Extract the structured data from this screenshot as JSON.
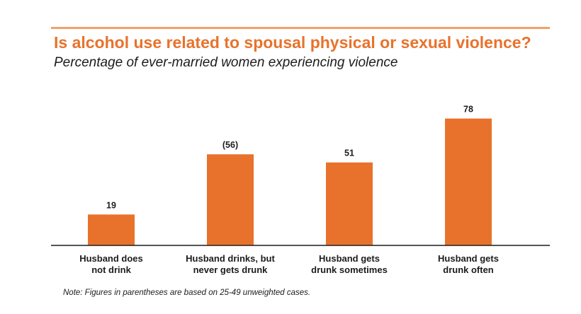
{
  "header": {
    "title": "Is alcohol use related to spousal physical or sexual violence?",
    "subtitle": "Percentage of ever-married women experiencing violence"
  },
  "note": "Note: Figures in parentheses are based on 25-49 unweighted cases.",
  "colors": {
    "accent": "#e8722c",
    "bar": "#e8722c",
    "rule": "#f0a268",
    "axis": "#1c1c1c"
  },
  "chart_data": {
    "type": "bar",
    "title": "Is alcohol use related to spousal physical or sexual violence?",
    "subtitle": "Percentage of ever-married women experiencing violence",
    "xlabel": "",
    "ylabel": "Percentage of ever-married women experiencing violence",
    "ylim": [
      0,
      100
    ],
    "grid": false,
    "categories": [
      [
        "Husband does",
        "not drink"
      ],
      [
        "Husband drinks, but",
        "never gets drunk"
      ],
      [
        "Husband gets",
        "drunk sometimes"
      ],
      [
        "Husband gets",
        "drunk often"
      ]
    ],
    "values": [
      19,
      56,
      51,
      78
    ],
    "value_labels": [
      "19",
      "(56)",
      "51",
      "78"
    ]
  }
}
